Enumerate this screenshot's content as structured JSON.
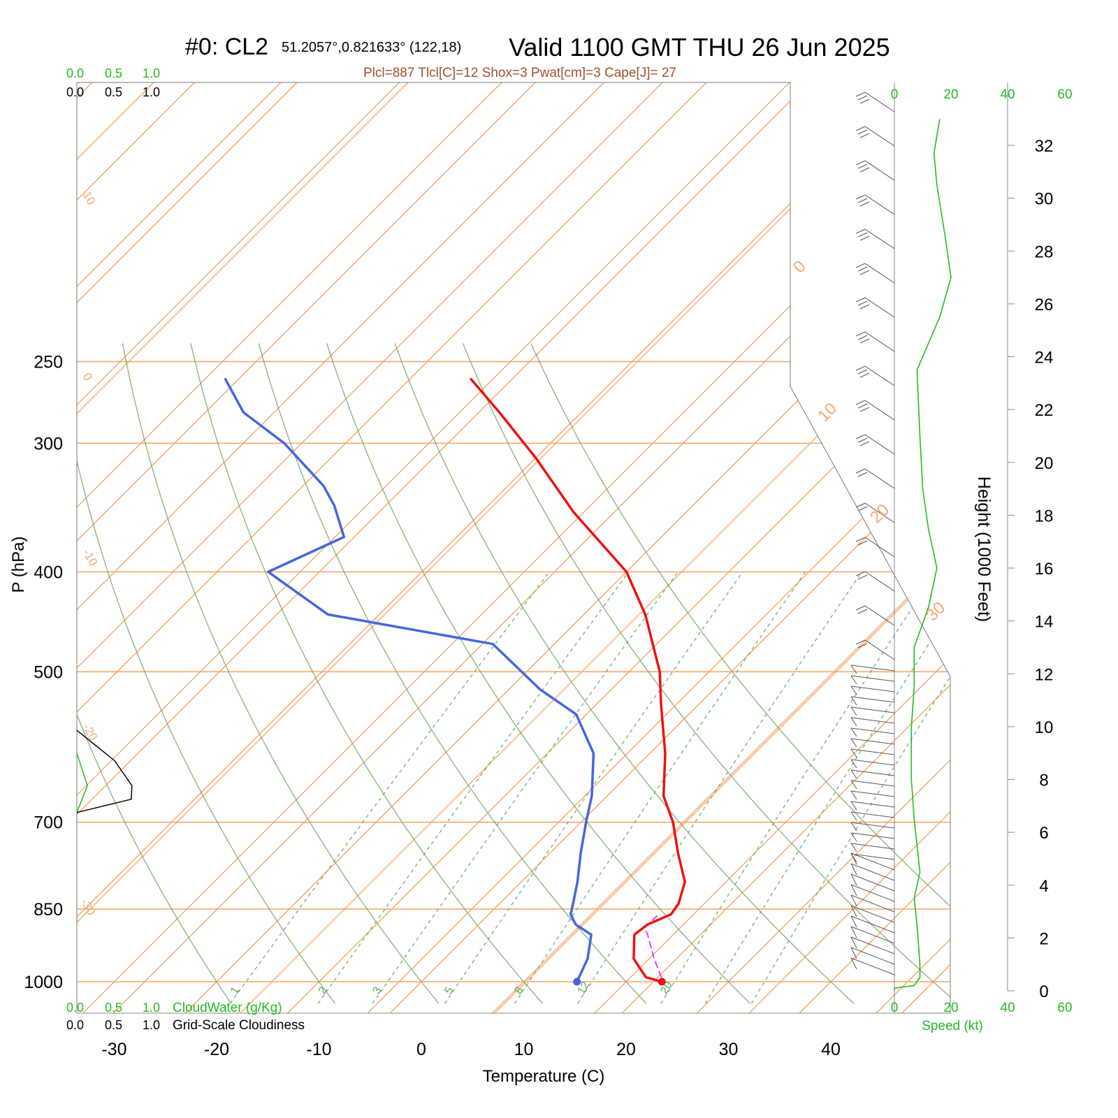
{
  "header": {
    "station": "#0: CL2",
    "location": "51.2057°,0.821633° (122,18)",
    "valid": "Valid 1100 GMT THU 26 Jun 2025",
    "indices": "Plcl=887 Tlcl[C]=12 Shox=3 Pwat[cm]=3 Cape[J]= 27"
  },
  "colors": {
    "isotherm": "#f7a86d",
    "dry_adiabat": "#6a9e5c",
    "mixing_ratio": "#5ea85a",
    "temperature": "#ee1111",
    "dewpoint": "#4466dd",
    "parcel": "#ff22ff",
    "wind_profile": "#22bb22",
    "title_indices": "#a0522d"
  },
  "left_scale": {
    "cloudwater_ticks": [
      "0.0",
      "0.5",
      "1.0"
    ],
    "cloudiness_ticks": [
      "0.0",
      "0.5",
      "1.0"
    ],
    "cloudwater_label": "CloudWater (g/Kg)",
    "cloudiness_label": "Grid-Scale Cloudiness"
  },
  "speed_panel": {
    "ticks": [
      "0",
      "20",
      "40",
      "60"
    ],
    "label": "Speed (kt)",
    "range": [
      0,
      60
    ]
  },
  "height_axis": {
    "label": "Height (1000 Feet)",
    "ticks": [
      "0",
      "2",
      "4",
      "6",
      "8",
      "10",
      "12",
      "14",
      "16",
      "18",
      "20",
      "22",
      "24",
      "26",
      "28",
      "30",
      "32"
    ]
  },
  "chart_data": {
    "type": "line",
    "title": "Valid 1100 GMT THU 26 Jun 2025",
    "xlabel": "Temperature (C)",
    "ylabel": "P (hPa)",
    "x_ticks": [
      "-30",
      "-20",
      "-10",
      "0",
      "10",
      "20",
      "30",
      "40"
    ],
    "y_ticks": [
      "250",
      "300",
      "400",
      "500",
      "700",
      "850",
      "1000"
    ],
    "isotherm_labels": [
      "10",
      "0",
      "-10",
      "-20",
      "-30",
      "0",
      "10",
      "20",
      "30"
    ],
    "mixing_ratio_labels": [
      "1",
      "2",
      "3",
      "5",
      "8",
      "12",
      "20"
    ],
    "series": [
      {
        "name": "Temperature",
        "points": [
          [
            1000,
            23.5
          ],
          [
            990,
            21.5
          ],
          [
            950,
            18.5
          ],
          [
            900,
            16.2
          ],
          [
            880,
            16.5
          ],
          [
            860,
            17.8
          ],
          [
            840,
            17.5
          ],
          [
            800,
            16.0
          ],
          [
            750,
            12.5
          ],
          [
            700,
            9.0
          ],
          [
            660,
            5.5
          ],
          [
            600,
            1.5
          ],
          [
            540,
            -3.5
          ],
          [
            500,
            -7.0
          ],
          [
            440,
            -14.0
          ],
          [
            400,
            -20.0
          ],
          [
            350,
            -31.0
          ],
          [
            310,
            -40.0
          ],
          [
            280,
            -48.0
          ],
          [
            260,
            -54.0
          ]
        ]
      },
      {
        "name": "Dewpoint",
        "points": [
          [
            1000,
            15.2
          ],
          [
            950,
            14.0
          ],
          [
            900,
            12.0
          ],
          [
            880,
            9.5
          ],
          [
            860,
            8.0
          ],
          [
            840,
            7.2
          ],
          [
            800,
            5.5
          ],
          [
            750,
            3.0
          ],
          [
            700,
            0.5
          ],
          [
            660,
            -1.5
          ],
          [
            600,
            -5.5
          ],
          [
            550,
            -11.0
          ],
          [
            520,
            -17.0
          ],
          [
            470,
            -26.0
          ],
          [
            440,
            -45.0
          ],
          [
            400,
            -55.0
          ],
          [
            370,
            -51.0
          ],
          [
            345,
            -55.0
          ],
          [
            330,
            -58.0
          ],
          [
            300,
            -66.0
          ],
          [
            280,
            -73.0
          ],
          [
            260,
            -78.0
          ]
        ]
      },
      {
        "name": "Parcel",
        "points": [
          [
            990,
            23.0
          ],
          [
            950,
            20.5
          ],
          [
            900,
            17.5
          ],
          [
            885,
            16.5
          ],
          [
            860,
            16.6
          ]
        ]
      }
    ],
    "cloud_water_profile": [
      [
        600,
        0.0
      ],
      [
        645,
        0.14
      ],
      [
        685,
        0.0
      ]
    ],
    "cloudiness_profile": [
      [
        570,
        0.0
      ],
      [
        610,
        0.5
      ],
      [
        645,
        0.73
      ],
      [
        665,
        0.72
      ],
      [
        685,
        0.0
      ]
    ],
    "wind_speed_profile": [
      [
        0,
        0
      ],
      [
        0.1,
        0
      ],
      [
        0.2,
        7
      ],
      [
        0.5,
        9
      ],
      [
        1.0,
        9
      ],
      [
        2.5,
        8
      ],
      [
        3.5,
        7
      ],
      [
        4.0,
        8
      ],
      [
        4.5,
        9
      ],
      [
        5.5,
        8
      ],
      [
        6.5,
        7
      ],
      [
        8.0,
        6
      ],
      [
        10.0,
        6
      ],
      [
        11.5,
        7
      ],
      [
        13.0,
        7
      ],
      [
        14.5,
        12
      ],
      [
        16.0,
        15
      ],
      [
        17.5,
        12
      ],
      [
        19.0,
        10
      ],
      [
        21.0,
        9
      ],
      [
        23.5,
        8
      ],
      [
        25.5,
        16
      ],
      [
        27.0,
        20
      ],
      [
        28.5,
        18
      ],
      [
        30.5,
        15
      ],
      [
        31.7,
        14
      ],
      [
        33.0,
        16
      ]
    ]
  }
}
